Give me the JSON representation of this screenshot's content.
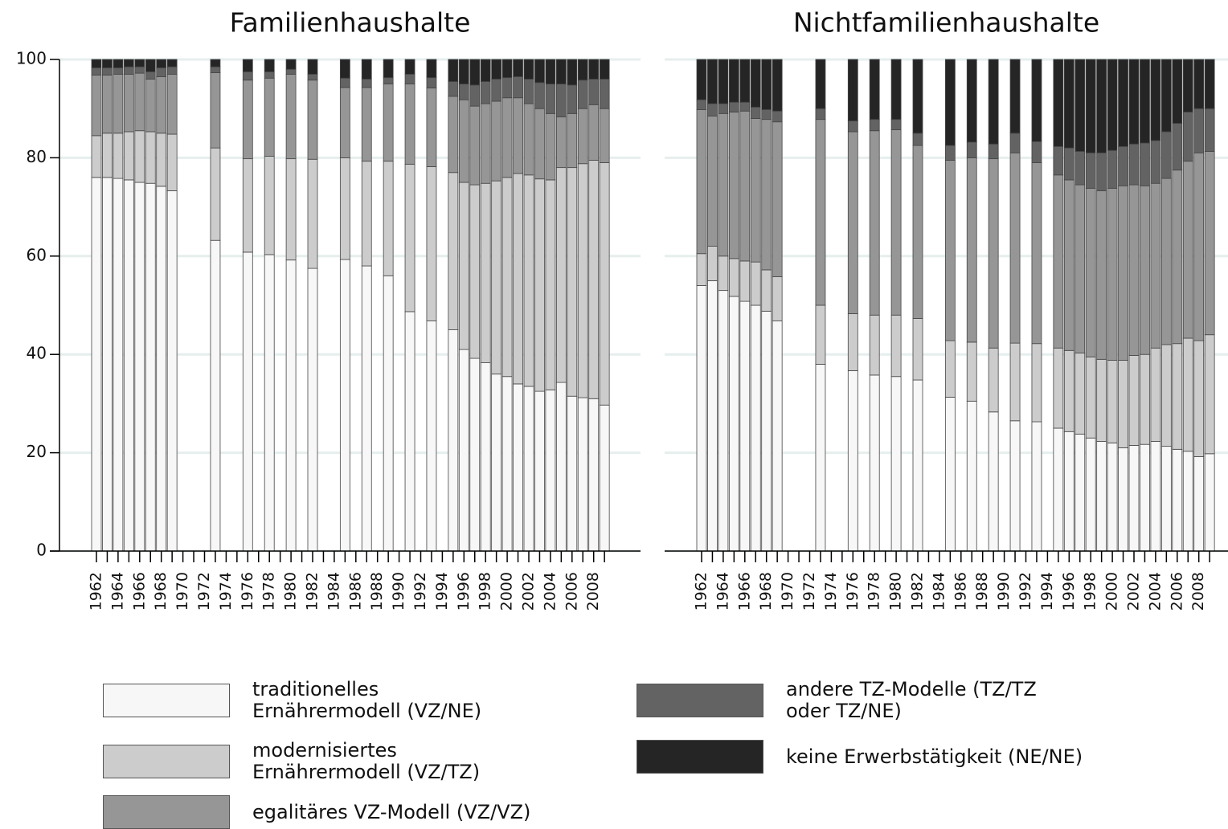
{
  "chart_data": [
    {
      "type": "stacked-bar",
      "title": "Familienhaushalte",
      "categories": [
        "1962",
        null,
        "1964",
        null,
        "1966",
        null,
        "1968",
        null,
        "1970",
        null,
        "1972",
        null,
        "1974",
        null,
        "1976",
        null,
        "1978",
        null,
        "1980",
        null,
        "1982",
        null,
        "1984",
        null,
        "1986",
        null,
        "1988",
        null,
        "1990",
        null,
        "1992",
        null,
        "1994",
        null,
        "1996",
        null,
        "1998",
        null,
        "2000",
        null,
        "2002",
        null,
        "2004",
        null,
        "2006",
        null,
        "2008",
        null
      ],
      "ylim": [
        0,
        100
      ],
      "yticks": [
        0,
        20,
        40,
        60,
        80,
        100
      ],
      "grid": true,
      "series": [
        {
          "name": "traditionelles\nErnährermodell (VZ/NE)",
          "color": "#f7f7f7",
          "values": [
            76,
            76,
            75.8,
            75.5,
            75,
            74.8,
            74.2,
            73.3,
            null,
            null,
            null,
            63.2,
            null,
            null,
            60.8,
            null,
            60.3,
            null,
            59.2,
            null,
            57.5,
            null,
            null,
            59.3,
            null,
            58,
            null,
            56,
            null,
            48.7,
            null,
            46.8,
            null,
            45,
            41,
            39.2,
            38.3,
            36,
            35.5,
            34,
            33.5,
            32.5,
            32.8,
            34.3,
            31.5,
            31.2,
            31,
            29.7
          ]
        },
        {
          "name": "modernisiertes\nErnährermodell (VZ/TZ)",
          "color": "#cccccc",
          "values": [
            8.5,
            9,
            9.2,
            9.8,
            10.5,
            10.5,
            10.8,
            11.5,
            null,
            null,
            null,
            18.8,
            null,
            null,
            19,
            null,
            20,
            null,
            20.6,
            null,
            22.2,
            null,
            null,
            20.7,
            null,
            21.3,
            null,
            23.3,
            null,
            30,
            null,
            31.4,
            null,
            32,
            34,
            35.3,
            36.5,
            39.3,
            40.5,
            42.8,
            43,
            43.2,
            42.7,
            43.7,
            46.5,
            47.6,
            48.5,
            49.3
          ]
        },
        {
          "name": "egalitäres VZ-Modell (VZ/VZ)",
          "color": "#969696",
          "values": [
            12.3,
            11.8,
            12,
            11.7,
            11.7,
            10.7,
            11.5,
            12.2,
            null,
            null,
            null,
            15.3,
            null,
            null,
            16,
            null,
            15.9,
            null,
            17.2,
            null,
            16.1,
            null,
            null,
            14.3,
            null,
            15,
            null,
            15.7,
            null,
            16.3,
            null,
            16,
            null,
            15.5,
            16.8,
            16,
            16.2,
            16.2,
            16.2,
            15.4,
            14.5,
            14.3,
            13.5,
            10.3,
            11,
            11.2,
            11.3,
            11
          ]
        },
        {
          "name": "andere TZ-Modelle (TZ/TZ\noder TZ/NE)",
          "color": "#636363",
          "values": [
            1.5,
            1.5,
            1.3,
            1.5,
            1.3,
            1.5,
            1.8,
            1.5,
            null,
            null,
            null,
            1.2,
            null,
            null,
            1.7,
            null,
            1.3,
            null,
            1,
            null,
            1.2,
            null,
            null,
            1.9,
            null,
            1.7,
            null,
            1.3,
            null,
            2,
            null,
            2.1,
            null,
            3,
            3.2,
            4.3,
            4.5,
            4.5,
            4.1,
            4.3,
            5,
            5.3,
            6,
            6.7,
            5.8,
            5.8,
            5.2,
            6
          ]
        },
        {
          "name": "keine Erwerbstätigkeit (NE/NE)",
          "color": "#252525",
          "values": [
            1.7,
            1.7,
            1.7,
            1.5,
            1.5,
            2.5,
            1.7,
            1.5,
            null,
            null,
            null,
            1.5,
            null,
            null,
            2.5,
            null,
            2.5,
            null,
            2,
            null,
            3,
            null,
            null,
            3.8,
            null,
            4,
            null,
            3.7,
            null,
            3,
            null,
            3.7,
            null,
            4.5,
            5,
            5.2,
            4.5,
            4,
            3.7,
            3.5,
            4,
            4.7,
            5,
            5,
            5.2,
            4.2,
            4,
            4
          ]
        }
      ]
    },
    {
      "type": "stacked-bar",
      "title": "Nichtfamilienhaushalte",
      "categories": [
        "1962",
        null,
        "1964",
        null,
        "1966",
        null,
        "1968",
        null,
        "1970",
        null,
        "1972",
        null,
        "1974",
        null,
        "1976",
        null,
        "1978",
        null,
        "1980",
        null,
        "1982",
        null,
        "1984",
        null,
        "1986",
        null,
        "1988",
        null,
        "1990",
        null,
        "1992",
        null,
        "1994",
        null,
        "1996",
        null,
        "1998",
        null,
        "2000",
        null,
        "2002",
        null,
        "2004",
        null,
        "2006",
        null,
        "2008",
        null
      ],
      "ylim": [
        0,
        100
      ],
      "yticks": [
        0,
        20,
        40,
        60,
        80,
        100
      ],
      "grid": true,
      "series": [
        {
          "color": "#f7f7f7",
          "values": [
            54,
            55,
            53,
            51.8,
            50.8,
            50,
            48.8,
            46.8,
            null,
            null,
            null,
            38,
            null,
            null,
            36.7,
            null,
            35.8,
            null,
            35.5,
            null,
            34.8,
            null,
            null,
            31.3,
            null,
            30.5,
            null,
            28.3,
            null,
            26.5,
            null,
            26.3,
            null,
            25,
            24.3,
            23.8,
            23,
            22.3,
            22,
            21,
            21.5,
            21.7,
            22.3,
            21.3,
            20.7,
            20.3,
            19.2,
            19.8
          ]
        },
        {
          "color": "#cccccc",
          "values": [
            6.5,
            7,
            7,
            7.7,
            8.2,
            8.8,
            8.4,
            9,
            null,
            null,
            null,
            12,
            null,
            null,
            11.6,
            null,
            12.2,
            null,
            12.5,
            null,
            12.5,
            null,
            null,
            11.5,
            null,
            12,
            null,
            13,
            null,
            15.8,
            null,
            15.9,
            null,
            16.3,
            16.5,
            16.5,
            16.5,
            16.7,
            16.8,
            17.8,
            18.3,
            18.3,
            19,
            20.7,
            21.5,
            23,
            23.6,
            24.2
          ]
        },
        {
          "color": "#969696",
          "values": [
            29.3,
            26.5,
            29,
            29.8,
            30.5,
            29.2,
            30.6,
            31.5,
            null,
            null,
            null,
            37.8,
            null,
            null,
            37,
            null,
            37.5,
            null,
            37.7,
            null,
            35.2,
            null,
            null,
            36.7,
            null,
            37.5,
            null,
            38.5,
            null,
            38.7,
            null,
            36.8,
            null,
            35.2,
            34.7,
            34.2,
            34.3,
            34.3,
            35,
            35.5,
            34.7,
            34.3,
            33.5,
            33.8,
            35.3,
            36,
            38.2,
            37.3
          ]
        },
        {
          "color": "#636363",
          "values": [
            2,
            2.5,
            2,
            2,
            1.8,
            2.3,
            2,
            2.2,
            null,
            null,
            null,
            2.2,
            null,
            null,
            2.2,
            null,
            2.3,
            null,
            2.1,
            null,
            2.5,
            null,
            null,
            3,
            null,
            3.2,
            null,
            3,
            null,
            4,
            null,
            4.3,
            null,
            5.8,
            6.5,
            6.8,
            7.2,
            7.7,
            7.7,
            8,
            8.3,
            8.7,
            8.7,
            9.5,
            9.5,
            10,
            9,
            8.7
          ]
        },
        {
          "color": "#252525",
          "values": [
            8.2,
            9,
            9,
            8.7,
            8.7,
            9.7,
            10.2,
            10.5,
            null,
            null,
            null,
            10,
            null,
            null,
            12.5,
            null,
            12.2,
            null,
            12.2,
            null,
            15,
            null,
            null,
            17.5,
            null,
            16.8,
            null,
            17.2,
            null,
            15,
            null,
            16.7,
            null,
            17.7,
            18,
            18.7,
            19,
            19,
            18.5,
            17.7,
            17.2,
            17,
            16.5,
            14.7,
            13,
            10.7,
            10,
            10
          ]
        }
      ]
    }
  ]
}
